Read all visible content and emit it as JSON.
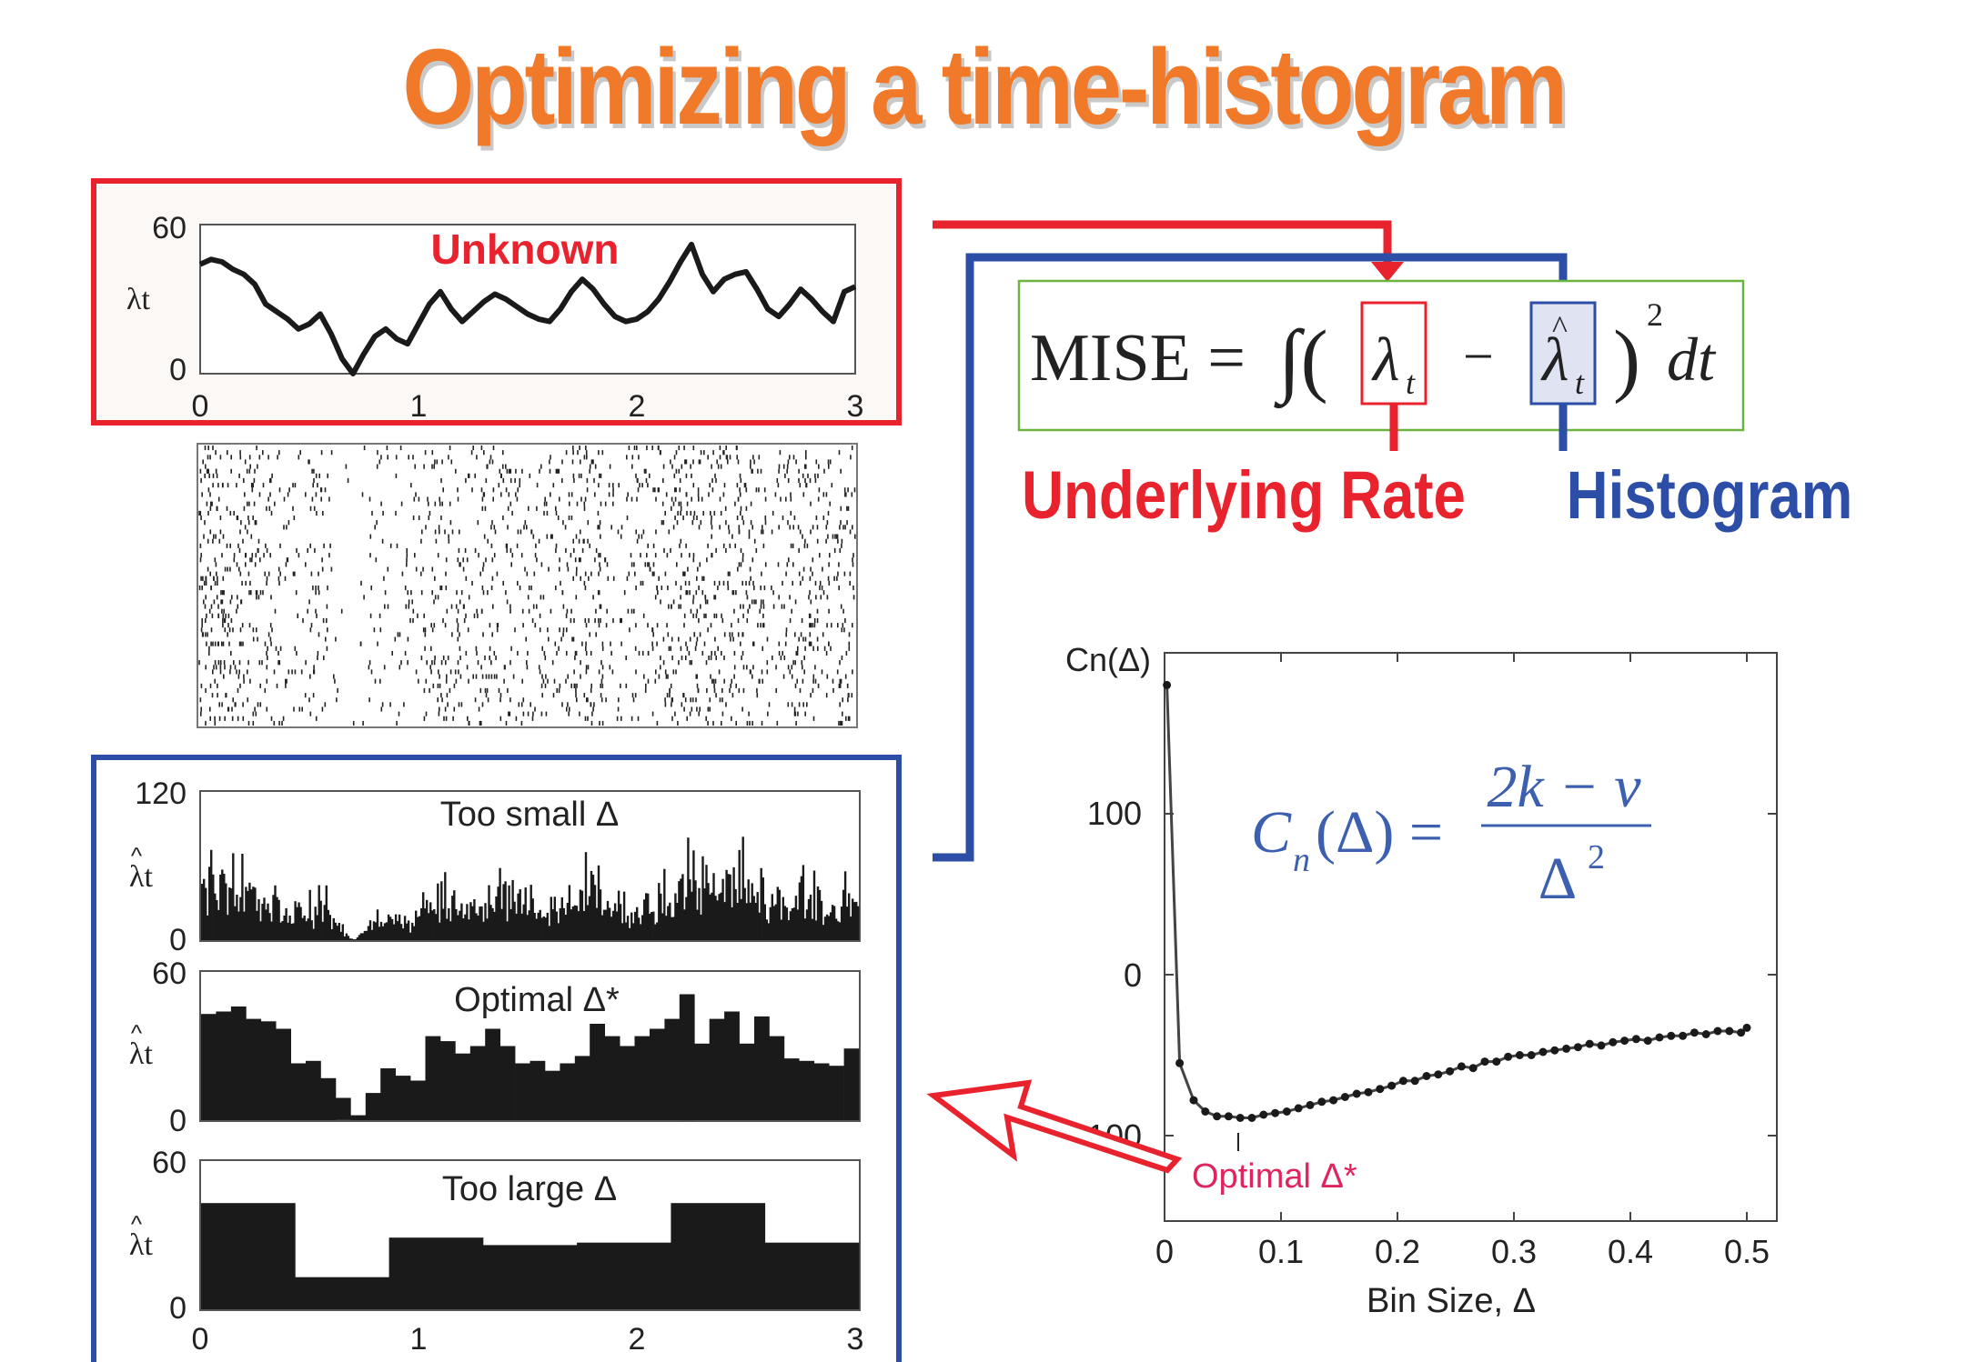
{
  "title": "Optimizing a time-histogram",
  "colors": {
    "title": "#f07a2a",
    "rate": "#e8232e",
    "hist": "#2d4ea6",
    "formula_box": "#6db33f",
    "optimal": "#e0245e",
    "formula_blue": "#3d5fb0"
  },
  "rate_panel": {
    "ylabel": "λt",
    "yticks": [
      "60",
      "0"
    ],
    "xticks": [
      "0",
      "1",
      "2",
      "3"
    ],
    "label": "Unknown",
    "ylim": [
      0,
      60
    ],
    "rate": [
      44,
      46,
      45,
      42,
      40,
      36,
      28,
      25,
      22,
      18,
      20,
      24,
      16,
      6,
      0,
      8,
      15,
      18,
      14,
      12,
      20,
      28,
      33,
      26,
      21,
      25,
      29,
      32,
      30,
      27,
      24,
      22,
      21,
      26,
      33,
      38,
      34,
      28,
      23,
      21,
      22,
      25,
      30,
      37,
      45,
      52,
      40,
      33,
      38,
      40,
      41,
      34,
      26,
      23,
      28,
      34,
      30,
      25,
      21,
      33,
      35
    ]
  },
  "raster": {
    "trials": 60,
    "gap_start": 0.45,
    "gap_end": 0.75
  },
  "formula": {
    "lhs": "MISE =",
    "integral": "∫(",
    "lambda": "λ",
    "sub_t": "t",
    "minus": "−",
    "close": ")",
    "sup_2": "2",
    "dt": "dt",
    "underlying_label": "Underlying Rate",
    "histogram_label": "Histogram"
  },
  "histograms": [
    {
      "label": "Too small Δ",
      "yticks": [
        "120",
        "0"
      ],
      "ylabel": "λt",
      "ylim": [
        0,
        120
      ]
    },
    {
      "label": "Optimal Δ*",
      "yticks": [
        "60",
        "0"
      ],
      "ylabel": "λt",
      "ylim": [
        0,
        60
      ],
      "values": [
        43,
        44,
        46,
        41,
        40,
        37,
        23,
        24,
        17,
        9,
        2,
        11,
        21,
        18,
        16,
        34,
        32,
        27,
        30,
        37,
        30,
        23,
        24,
        20,
        23,
        26,
        39,
        34,
        30,
        34,
        37,
        41,
        51,
        31,
        41,
        44,
        31,
        42,
        34,
        25,
        24,
        23,
        22,
        29
      ]
    },
    {
      "label": "Too large Δ",
      "yticks": [
        "60",
        "0"
      ],
      "ylabel": "λt",
      "ylim": [
        0,
        60
      ],
      "values": [
        43,
        13,
        29,
        26,
        27,
        43,
        27
      ]
    }
  ],
  "hist_xticks": [
    "0",
    "1",
    "2",
    "3"
  ],
  "chart_data": {
    "type": "scatter",
    "ylabel": "Cn(Δ)",
    "xlabel": "Bin Size, Δ",
    "xlim": [
      0,
      0.5
    ],
    "ylim": [
      -140,
      200
    ],
    "xticks": [
      "0",
      "0.1",
      "0.2",
      "0.3",
      "0.4",
      "0.5"
    ],
    "yticks": [
      "100",
      "0",
      "-100"
    ],
    "x": [
      0.002,
      0.013,
      0.025,
      0.035,
      0.045,
      0.055,
      0.065,
      0.075,
      0.085,
      0.095,
      0.105,
      0.115,
      0.125,
      0.135,
      0.145,
      0.155,
      0.165,
      0.175,
      0.185,
      0.195,
      0.205,
      0.215,
      0.225,
      0.235,
      0.245,
      0.255,
      0.265,
      0.275,
      0.285,
      0.295,
      0.305,
      0.315,
      0.325,
      0.335,
      0.345,
      0.355,
      0.365,
      0.375,
      0.385,
      0.395,
      0.405,
      0.415,
      0.425,
      0.435,
      0.445,
      0.455,
      0.465,
      0.475,
      0.485,
      0.495,
      0.5
    ],
    "y": [
      180,
      -55,
      -78,
      -85,
      -88,
      -88,
      -89,
      -89,
      -87,
      -86,
      -85,
      -83,
      -81,
      -79,
      -78,
      -76,
      -74,
      -73,
      -71,
      -69,
      -66,
      -66,
      -63,
      -62,
      -60,
      -57,
      -58,
      -54,
      -54,
      -51,
      -50,
      -50,
      -48,
      -47,
      -46,
      -45,
      -43,
      -44,
      -42,
      -41,
      -40,
      -41,
      -39,
      -38,
      -38,
      -36,
      -37,
      -35,
      -35,
      -36,
      -33
    ],
    "formula": {
      "lhs_C": "C",
      "lhs_n": "n",
      "lhs_rest": "(Δ) =",
      "numerator": "2k − v",
      "denominator": "Δ",
      "den_sup": "2"
    },
    "annotation": "Optimal Δ*"
  }
}
